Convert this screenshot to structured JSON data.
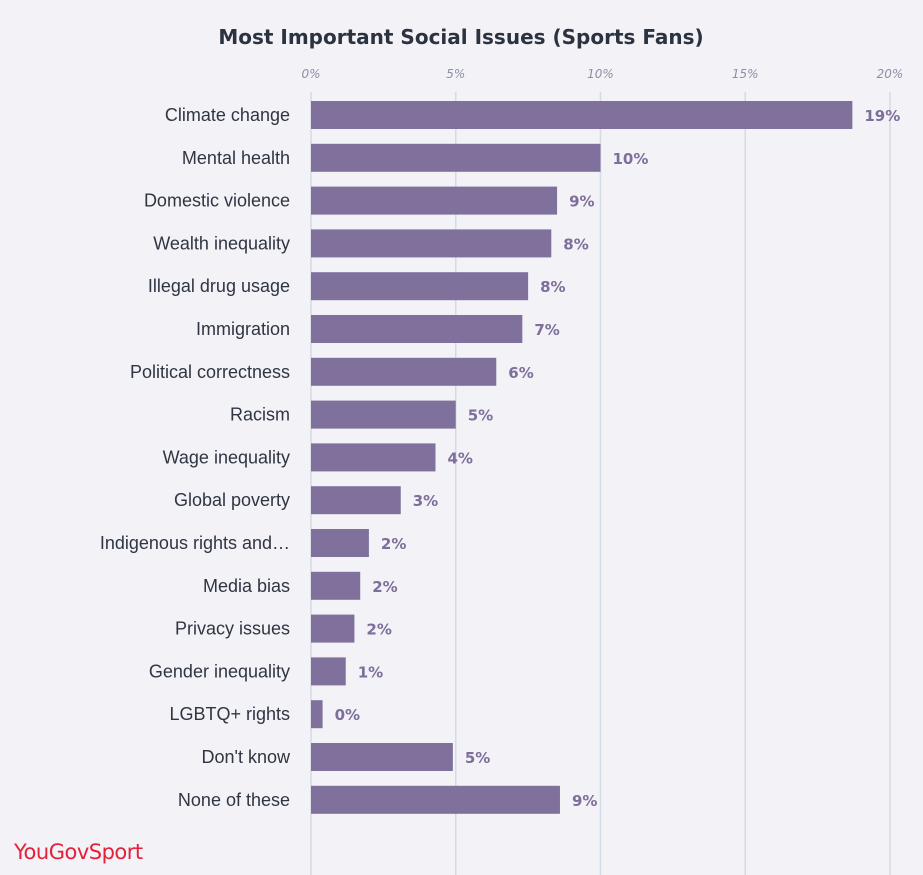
{
  "chart_data": {
    "type": "bar",
    "orientation": "horizontal",
    "title": "Most Important Social Issues (Sports Fans)",
    "x_ticks": [
      "0%",
      "5%",
      "10%",
      "15%",
      "20%"
    ],
    "xlim": [
      0,
      20
    ],
    "grid": true,
    "bar_color": "#7f719c",
    "label_color": "#7d6e9a",
    "categories": [
      "Climate change",
      "Mental health",
      "Domestic violence",
      "Wealth inequality",
      "Illegal drug usage",
      "Immigration",
      "Political correctness",
      "Racism",
      "Wage inequality",
      "Global poverty",
      "Indigenous rights and…",
      "Media bias",
      "Privacy issues",
      "Gender inequality",
      "LGBTQ+ rights",
      "Don't know",
      "None of these"
    ],
    "values": [
      18.7,
      10.0,
      8.5,
      8.3,
      7.5,
      7.3,
      6.4,
      5.0,
      4.3,
      3.1,
      2.0,
      1.7,
      1.5,
      1.2,
      0.4,
      4.9,
      8.6
    ],
    "labels": [
      "19%",
      "10%",
      "9%",
      "8%",
      "8%",
      "7%",
      "6%",
      "5%",
      "4%",
      "3%",
      "2%",
      "2%",
      "2%",
      "1%",
      "0%",
      "5%",
      "9%"
    ]
  },
  "brand": {
    "name": "YouGov",
    "suffix": "Sport"
  }
}
